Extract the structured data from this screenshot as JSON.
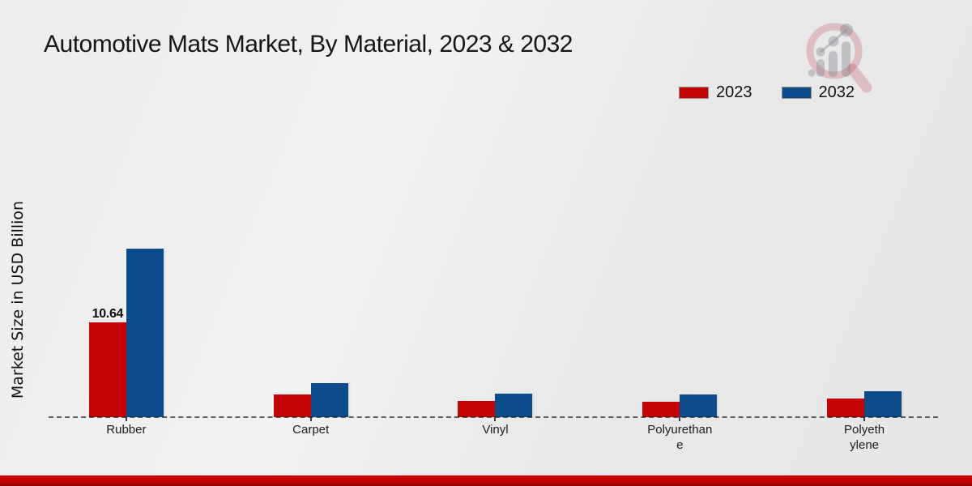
{
  "title": "Automotive Mats Market, By Material, 2023 & 2032",
  "y_axis_label": "Market Size in USD Billion",
  "legend": {
    "items": [
      {
        "label": "2023",
        "color": "#c40404"
      },
      {
        "label": "2032",
        "color": "#0d4c8a"
      }
    ],
    "position": "top-right"
  },
  "branding": {
    "logo_icon": "magnifier-bar-chart-watermark-icon"
  },
  "accent_colors": {
    "footer_bar_red": "#c30000",
    "series_2023_red": "#c40404",
    "series_2032_blue": "#0d4c8a"
  },
  "chart_data": {
    "type": "bar",
    "title": "Automotive Mats Market, By Material, 2023 & 2032",
    "xlabel": "",
    "ylabel": "Market Size in USD Billion",
    "categories": [
      "Rubber",
      "Carpet",
      "Vinyl",
      "Polyurethane",
      "Polyethylene"
    ],
    "category_display_lines": [
      [
        "Rubber"
      ],
      [
        "Carpet"
      ],
      [
        "Vinyl"
      ],
      [
        "Polyurethan",
        "e"
      ],
      [
        "Polyeth",
        "ylene"
      ]
    ],
    "series": [
      {
        "name": "2023",
        "color": "#c40404",
        "values": [
          10.64,
          2.5,
          1.8,
          1.7,
          2.1
        ]
      },
      {
        "name": "2032",
        "color": "#0d4c8a",
        "values": [
          18.9,
          3.8,
          2.6,
          2.5,
          2.9
        ]
      }
    ],
    "bar_labels": [
      {
        "series_index": 0,
        "category_index": 0,
        "text": "10.64"
      }
    ],
    "ylim": [
      0,
      20
    ],
    "y_axis_ticks_visible": false,
    "grid": "dashed-zero-baseline-only",
    "legend_position": "top-right"
  }
}
